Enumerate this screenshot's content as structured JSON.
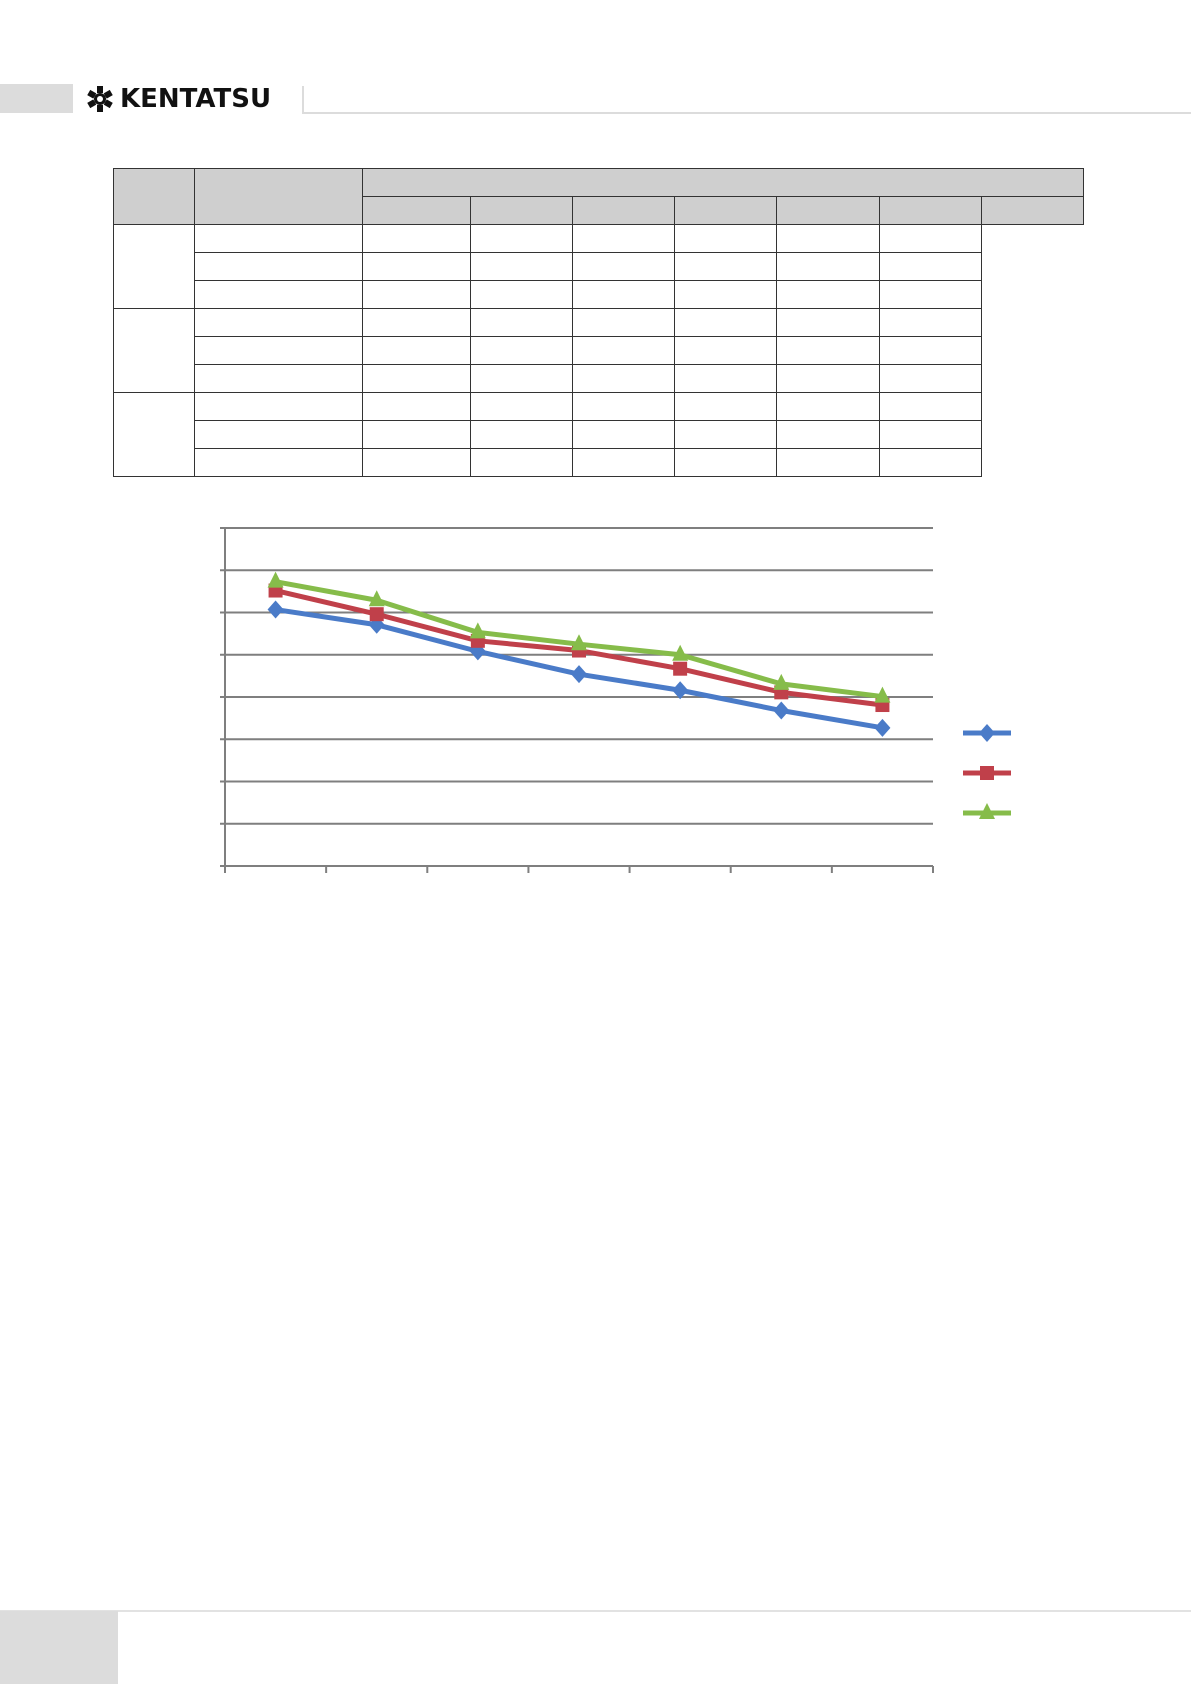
{
  "header": {
    "brand": "KENTATSU",
    "logo_icon": "gear-flower-icon"
  },
  "table": {
    "header_row1": [
      "",
      "",
      ""
    ],
    "header_row2": [
      "",
      "",
      "",
      "",
      "",
      "",
      ""
    ],
    "groups": [
      {
        "label": "",
        "rows": [
          [
            "",
            "",
            "",
            "",
            "",
            "",
            "",
            ""
          ],
          [
            "",
            "",
            "",
            "",
            "",
            "",
            "",
            ""
          ],
          [
            "",
            "",
            "",
            "",
            "",
            "",
            "",
            ""
          ]
        ]
      },
      {
        "label": "",
        "rows": [
          [
            "",
            "",
            "",
            "",
            "",
            "",
            "",
            ""
          ],
          [
            "",
            "",
            "",
            "",
            "",
            "",
            "",
            ""
          ],
          [
            "",
            "",
            "",
            "",
            "",
            "",
            "",
            ""
          ]
        ]
      },
      {
        "label": "",
        "rows": [
          [
            "",
            "",
            "",
            "",
            "",
            "",
            "",
            ""
          ],
          [
            "",
            "",
            "",
            "",
            "",
            "",
            "",
            ""
          ],
          [
            "",
            "",
            "",
            "",
            "",
            "",
            "",
            ""
          ]
        ]
      }
    ]
  },
  "chart_data": {
    "type": "line",
    "title": "",
    "xlabel": "",
    "ylabel": "",
    "categories": [
      "",
      "",
      "",
      "",
      "",
      "",
      ""
    ],
    "ylim": [
      0,
      8
    ],
    "grid": true,
    "legend": "right",
    "series": [
      {
        "color": "#4a7bc8",
        "marker": "diamond",
        "values": [
          6.07,
          5.71,
          5.08,
          4.54,
          4.16,
          3.68,
          3.27
        ]
      },
      {
        "color": "#c0404a",
        "marker": "square",
        "values": [
          6.52,
          5.96,
          5.33,
          5.1,
          4.67,
          4.11,
          3.81
        ]
      },
      {
        "color": "#86bc4a",
        "marker": "triangle",
        "values": [
          6.73,
          6.29,
          5.53,
          5.25,
          5.0,
          4.31,
          4.01
        ]
      }
    ]
  }
}
